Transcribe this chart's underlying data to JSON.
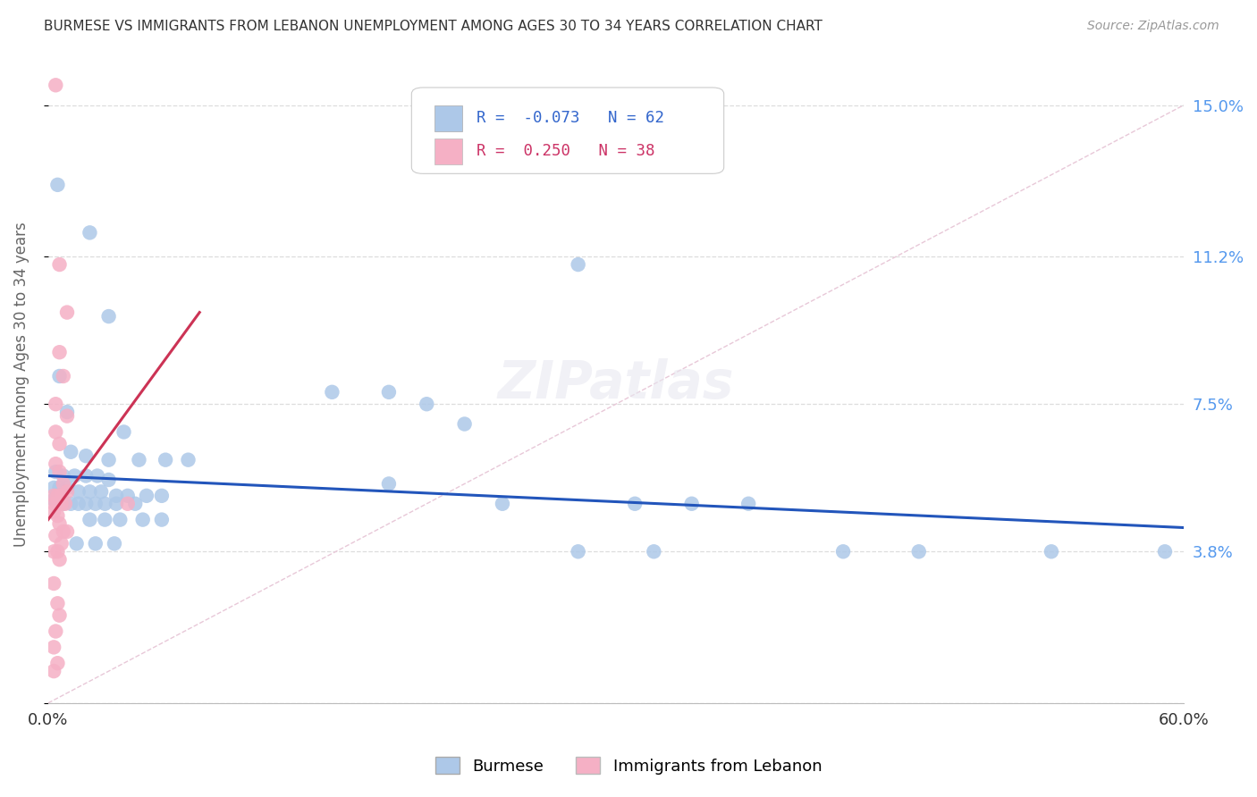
{
  "title": "BURMESE VS IMMIGRANTS FROM LEBANON UNEMPLOYMENT AMONG AGES 30 TO 34 YEARS CORRELATION CHART",
  "source": "Source: ZipAtlas.com",
  "ylabel": "Unemployment Among Ages 30 to 34 years",
  "xlim": [
    0.0,
    0.6
  ],
  "ylim": [
    0.0,
    0.16
  ],
  "ytick_vals": [
    0.0,
    0.038,
    0.075,
    0.112,
    0.15
  ],
  "ytick_labels_right": [
    "",
    "3.8%",
    "7.5%",
    "11.2%",
    "15.0%"
  ],
  "xtick_vals": [
    0.0,
    0.12,
    0.24,
    0.36,
    0.48,
    0.6
  ],
  "xtick_labels": [
    "0.0%",
    "",
    "",
    "",
    "",
    "60.0%"
  ],
  "blue_color": "#adc8e8",
  "pink_color": "#f5b0c5",
  "blue_line_color": "#2255bb",
  "pink_line_color": "#cc3355",
  "diag_color": "#e8c8d8",
  "blue_R": -0.073,
  "blue_N": 62,
  "pink_R": 0.25,
  "pink_N": 38,
  "blue_line_x": [
    0.0,
    0.6
  ],
  "blue_line_y": [
    0.057,
    0.044
  ],
  "pink_line_x": [
    0.0,
    0.08
  ],
  "pink_line_y": [
    0.046,
    0.098
  ],
  "diag_line_x": [
    0.0,
    0.6
  ],
  "diag_line_y": [
    0.0,
    0.15
  ],
  "blue_pts": [
    [
      0.005,
      0.13
    ],
    [
      0.022,
      0.118
    ],
    [
      0.032,
      0.097
    ],
    [
      0.006,
      0.082
    ],
    [
      0.15,
      0.078
    ],
    [
      0.18,
      0.078
    ],
    [
      0.01,
      0.073
    ],
    [
      0.04,
      0.068
    ],
    [
      0.012,
      0.063
    ],
    [
      0.02,
      0.062
    ],
    [
      0.032,
      0.061
    ],
    [
      0.048,
      0.061
    ],
    [
      0.062,
      0.061
    ],
    [
      0.074,
      0.061
    ],
    [
      0.004,
      0.058
    ],
    [
      0.008,
      0.057
    ],
    [
      0.014,
      0.057
    ],
    [
      0.02,
      0.057
    ],
    [
      0.026,
      0.057
    ],
    [
      0.032,
      0.056
    ],
    [
      0.003,
      0.054
    ],
    [
      0.006,
      0.054
    ],
    [
      0.01,
      0.054
    ],
    [
      0.016,
      0.053
    ],
    [
      0.022,
      0.053
    ],
    [
      0.028,
      0.053
    ],
    [
      0.036,
      0.052
    ],
    [
      0.042,
      0.052
    ],
    [
      0.052,
      0.052
    ],
    [
      0.06,
      0.052
    ],
    [
      0.003,
      0.051
    ],
    [
      0.005,
      0.05
    ],
    [
      0.008,
      0.05
    ],
    [
      0.012,
      0.05
    ],
    [
      0.016,
      0.05
    ],
    [
      0.02,
      0.05
    ],
    [
      0.025,
      0.05
    ],
    [
      0.03,
      0.05
    ],
    [
      0.036,
      0.05
    ],
    [
      0.046,
      0.05
    ],
    [
      0.022,
      0.046
    ],
    [
      0.03,
      0.046
    ],
    [
      0.038,
      0.046
    ],
    [
      0.05,
      0.046
    ],
    [
      0.06,
      0.046
    ],
    [
      0.015,
      0.04
    ],
    [
      0.025,
      0.04
    ],
    [
      0.035,
      0.04
    ],
    [
      0.28,
      0.11
    ],
    [
      0.2,
      0.075
    ],
    [
      0.22,
      0.07
    ],
    [
      0.18,
      0.055
    ],
    [
      0.24,
      0.05
    ],
    [
      0.31,
      0.05
    ],
    [
      0.34,
      0.05
    ],
    [
      0.37,
      0.05
    ],
    [
      0.28,
      0.038
    ],
    [
      0.32,
      0.038
    ],
    [
      0.42,
      0.038
    ],
    [
      0.46,
      0.038
    ],
    [
      0.53,
      0.038
    ],
    [
      0.59,
      0.038
    ]
  ],
  "pink_pts": [
    [
      0.004,
      0.155
    ],
    [
      0.006,
      0.11
    ],
    [
      0.01,
      0.098
    ],
    [
      0.006,
      0.088
    ],
    [
      0.008,
      0.082
    ],
    [
      0.004,
      0.075
    ],
    [
      0.01,
      0.072
    ],
    [
      0.004,
      0.068
    ],
    [
      0.006,
      0.065
    ],
    [
      0.004,
      0.06
    ],
    [
      0.006,
      0.058
    ],
    [
      0.008,
      0.055
    ],
    [
      0.01,
      0.053
    ],
    [
      0.003,
      0.052
    ],
    [
      0.005,
      0.052
    ],
    [
      0.007,
      0.052
    ],
    [
      0.003,
      0.05
    ],
    [
      0.005,
      0.05
    ],
    [
      0.007,
      0.05
    ],
    [
      0.009,
      0.05
    ],
    [
      0.003,
      0.048
    ],
    [
      0.005,
      0.047
    ],
    [
      0.006,
      0.045
    ],
    [
      0.008,
      0.043
    ],
    [
      0.01,
      0.043
    ],
    [
      0.004,
      0.042
    ],
    [
      0.007,
      0.04
    ],
    [
      0.003,
      0.038
    ],
    [
      0.005,
      0.038
    ],
    [
      0.006,
      0.036
    ],
    [
      0.042,
      0.05
    ],
    [
      0.003,
      0.03
    ],
    [
      0.005,
      0.025
    ],
    [
      0.006,
      0.022
    ],
    [
      0.004,
      0.018
    ],
    [
      0.003,
      0.014
    ],
    [
      0.005,
      0.01
    ],
    [
      0.003,
      0.008
    ]
  ]
}
